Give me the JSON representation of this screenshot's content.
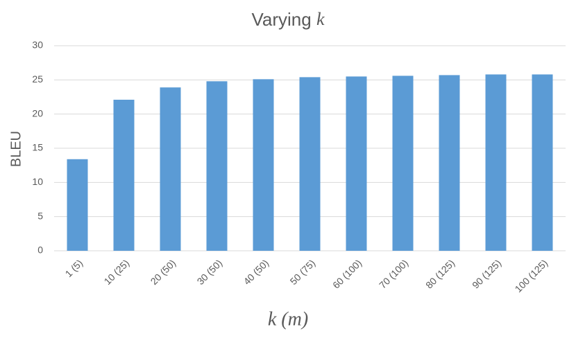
{
  "chart_data": {
    "type": "bar",
    "title": "Varying k",
    "x_label": "k (m)",
    "y_label": "BLEU",
    "categories": [
      "1 (5)",
      "10 (25)",
      "20 (50)",
      "30 (50)",
      "40 (50)",
      "50 (75)",
      "60 (100)",
      "70 (100)",
      "80 (125)",
      "90 (125)",
      "100 (125)"
    ],
    "values": [
      13.4,
      22.1,
      23.9,
      24.8,
      25.1,
      25.4,
      25.5,
      25.6,
      25.7,
      25.8,
      25.8
    ],
    "color": "#5b9bd5",
    "ylim": [
      0,
      30
    ],
    "yticks": [
      0,
      5,
      10,
      15,
      20,
      25,
      30
    ],
    "grid": true
  }
}
